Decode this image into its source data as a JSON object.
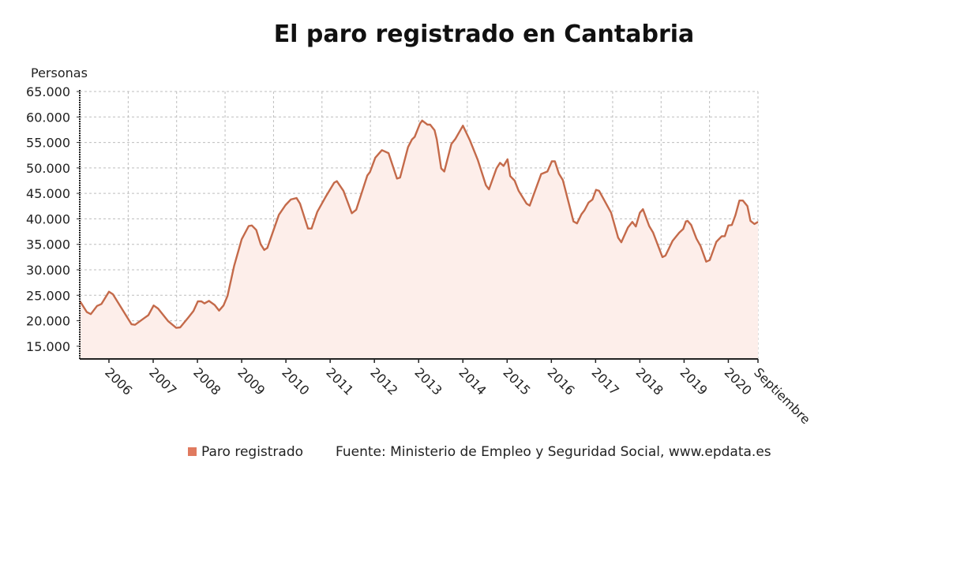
{
  "chart_data": {
    "type": "area",
    "title": "El paro registrado en Cantabria",
    "ylabel": "Personas",
    "xlabel": "",
    "ylim": [
      12500,
      65000
    ],
    "xlim": [
      2005.34,
      2020.67
    ],
    "grid": true,
    "legend_placement": "bottom",
    "y_ticks": [
      15000,
      20000,
      25000,
      30000,
      35000,
      40000,
      45000,
      50000,
      55000,
      60000,
      65000
    ],
    "y_tick_labels": [
      "15.000",
      "20.000",
      "25.000",
      "30.000",
      "35.000",
      "40.000",
      "45.000",
      "50.000",
      "55.000",
      "60.000",
      "65.000"
    ],
    "x_tick_labels": [
      "2006",
      "2007",
      "2008",
      "2009",
      "2010",
      "2011",
      "2012",
      "2013",
      "2014",
      "2015",
      "2016",
      "2017",
      "2018",
      "2019",
      "2020",
      "Septiembre"
    ],
    "x_ticks": [
      2006,
      2007,
      2008,
      2009,
      2010,
      2011,
      2012,
      2013,
      2014,
      2015,
      2016,
      2017,
      2018,
      2019,
      2020,
      2020.67
    ],
    "colors": {
      "line": "#c46a4a",
      "fill": "#fdeeea",
      "legend": "#e07a5f"
    },
    "series": [
      {
        "name": "Paro registrado",
        "x": [
          2005.34,
          2005.5,
          2005.59,
          2005.73,
          2005.83,
          2006.0,
          2006.09,
          2006.51,
          2006.59,
          2006.81,
          2006.89,
          2007.01,
          2007.11,
          2007.34,
          2007.52,
          2007.61,
          2007.79,
          2007.91,
          2008.01,
          2008.09,
          2008.16,
          2008.26,
          2008.39,
          2008.49,
          2008.59,
          2008.68,
          2008.83,
          2009.0,
          2009.16,
          2009.23,
          2009.33,
          2009.43,
          2009.51,
          2009.58,
          2009.84,
          2009.99,
          2010.11,
          2010.24,
          2010.32,
          2010.5,
          2010.58,
          2010.71,
          2010.89,
          2011.09,
          2011.15,
          2011.3,
          2011.49,
          2011.59,
          2011.84,
          2011.9,
          2012.02,
          2012.17,
          2012.32,
          2012.51,
          2012.58,
          2012.76,
          2012.85,
          2012.91,
          2013.03,
          2013.08,
          2013.2,
          2013.26,
          2013.36,
          2013.41,
          2013.51,
          2013.58,
          2013.74,
          2013.83,
          2014.0,
          2014.16,
          2014.34,
          2014.52,
          2014.59,
          2014.76,
          2014.84,
          2014.92,
          2015.01,
          2015.07,
          2015.17,
          2015.26,
          2015.44,
          2015.51,
          2015.77,
          2015.91,
          2016.01,
          2016.08,
          2016.17,
          2016.26,
          2016.5,
          2016.58,
          2016.68,
          2016.75,
          2016.84,
          2016.93,
          2017.01,
          2017.08,
          2017.35,
          2017.51,
          2017.58,
          2017.73,
          2017.83,
          2017.91,
          2018.0,
          2018.07,
          2018.21,
          2018.3,
          2018.51,
          2018.58,
          2018.74,
          2018.89,
          2018.98,
          2019.04,
          2019.08,
          2019.16,
          2019.28,
          2019.37,
          2019.5,
          2019.58,
          2019.73,
          2019.85,
          2019.92,
          2020.0,
          2020.08,
          2020.16,
          2020.25,
          2020.33,
          2020.43,
          2020.5,
          2020.59,
          2020.67
        ],
        "values": [
          23900,
          21700,
          21300,
          22900,
          23300,
          25700,
          25200,
          19300,
          19200,
          20600,
          21100,
          23000,
          22400,
          19900,
          18600,
          18700,
          20600,
          21900,
          23800,
          23800,
          23400,
          23900,
          23100,
          22000,
          23000,
          24900,
          30800,
          36000,
          38600,
          38700,
          37800,
          35000,
          33900,
          34300,
          40800,
          42700,
          43800,
          44100,
          43000,
          38100,
          38100,
          41400,
          44200,
          47100,
          47400,
          45500,
          41100,
          41800,
          48500,
          49200,
          52000,
          53500,
          52900,
          47900,
          48100,
          54100,
          55600,
          56100,
          58700,
          59300,
          58500,
          58500,
          57400,
          55600,
          49900,
          49300,
          54700,
          55700,
          58300,
          55400,
          51500,
          46600,
          45800,
          49900,
          51000,
          50400,
          51700,
          48400,
          47500,
          45500,
          43000,
          42600,
          48800,
          49300,
          51300,
          51300,
          48900,
          47600,
          39500,
          39100,
          40900,
          41700,
          43200,
          43800,
          45700,
          45500,
          41200,
          36300,
          35400,
          38300,
          39400,
          38500,
          41200,
          41900,
          38600,
          37300,
          32500,
          32800,
          35700,
          37300,
          38000,
          39500,
          39600,
          38800,
          36100,
          34700,
          31600,
          31900,
          35500,
          36600,
          36600,
          38700,
          38800,
          40700,
          43600,
          43600,
          42500,
          39600,
          39000,
          39400
        ]
      }
    ],
    "legend": {
      "series_label": "Paro registrado",
      "source": "Fuente: Ministerio de Empleo y Seguridad Social, www.epdata.es"
    }
  }
}
